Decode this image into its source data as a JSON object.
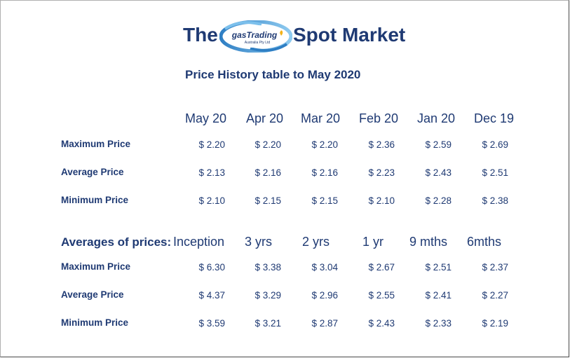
{
  "header": {
    "title_left": "The",
    "title_right": "Spot Market",
    "logo_text": "gasTrading",
    "logo_subtext": "Australia Pty Ltd",
    "subtitle": "Price History table to May  2020"
  },
  "monthly": {
    "columns": [
      "May 20",
      "Apr 20",
      "Mar 20",
      "Feb 20",
      "Jan 20",
      "Dec 19"
    ],
    "rows": [
      {
        "label": "Maximum Price",
        "values": [
          "$ 2.20",
          "$ 2.20",
          "$ 2.20",
          "$ 2.36",
          "$ 2.59",
          "$ 2.69"
        ]
      },
      {
        "label": "Average Price",
        "values": [
          "$ 2.13",
          "$ 2.16",
          "$ 2.16",
          "$ 2.23",
          "$ 2.43",
          "$ 2.51"
        ]
      },
      {
        "label": "Minimum Price",
        "values": [
          "$ 2.10",
          "$ 2.15",
          "$ 2.15",
          "$ 2.10",
          "$ 2.28",
          "$ 2.38"
        ]
      }
    ]
  },
  "averages": {
    "label": "Averages of prices:",
    "columns": [
      "Inception",
      "3 yrs",
      "2 yrs",
      "1 yr",
      "9 mths",
      "6mths"
    ],
    "rows": [
      {
        "label": "Maximum Price",
        "values": [
          "$ 6.30",
          "$ 3.38",
          "$ 3.04",
          "$ 2.67",
          "$ 2.51",
          "$ 2.37"
        ]
      },
      {
        "label": "Average Price",
        "values": [
          "$ 4.37",
          "$ 3.29",
          "$ 2.96",
          "$ 2.55",
          "$ 2.41",
          "$ 2.27"
        ]
      },
      {
        "label": "Minimum Price",
        "values": [
          "$ 3.59",
          "$ 3.21",
          "$ 2.87",
          "$ 2.43",
          "$ 2.33",
          "$ 2.19"
        ]
      }
    ]
  },
  "colors": {
    "text": "#1f3a73",
    "logo_swoosh": "#5aa6dc",
    "logo_oval": "#ffffff"
  }
}
